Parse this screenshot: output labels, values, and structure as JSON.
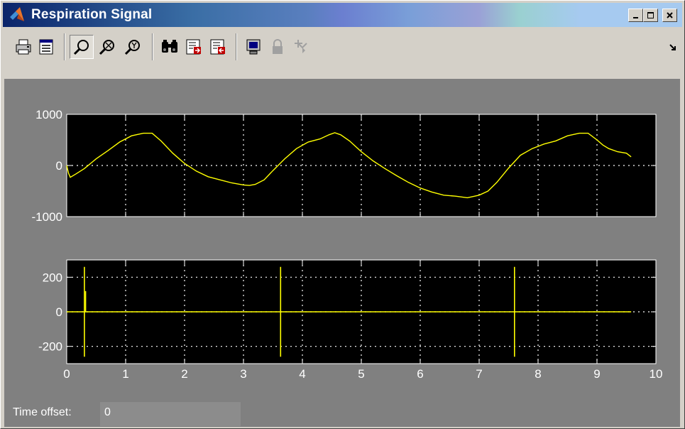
{
  "window": {
    "title": "Respiration Signal",
    "controls": [
      "minimize",
      "maximize",
      "close"
    ]
  },
  "toolbar": {
    "items": [
      {
        "name": "print-icon"
      },
      {
        "name": "parameters-icon"
      },
      {
        "name": "zoom-icon",
        "pressed": true
      },
      {
        "name": "zoom-x-icon"
      },
      {
        "name": "zoom-y-icon"
      },
      {
        "name": "autoscale-icon"
      },
      {
        "name": "save-axes-icon"
      },
      {
        "name": "restore-axes-icon"
      },
      {
        "name": "floating-scope-icon"
      },
      {
        "name": "lock-axes-icon"
      },
      {
        "name": "signal-selector-icon"
      }
    ]
  },
  "colors": {
    "scope_bg": "#808080",
    "axes_bg": "#000000",
    "signal": "#ffff00",
    "grid": "#ffffff"
  },
  "status": {
    "label": "Time offset:",
    "value": "0"
  },
  "chart_data": [
    {
      "type": "line",
      "xlim": [
        0,
        10
      ],
      "ylim": [
        -1000,
        1000
      ],
      "yticks": [
        "1000",
        "0",
        "-1000"
      ],
      "grid": true,
      "series": [
        {
          "x": [
            0,
            0.03,
            0.06,
            0.15,
            0.3,
            0.5,
            0.7,
            0.9,
            1.1,
            1.3,
            1.45,
            1.6,
            1.8,
            2.0,
            2.2,
            2.4,
            2.6,
            2.8,
            3.0,
            3.1,
            3.2,
            3.35,
            3.5,
            3.7,
            3.9,
            4.1,
            4.3,
            4.45,
            4.55,
            4.65,
            4.8,
            5.0,
            5.2,
            5.4,
            5.6,
            5.8,
            6.0,
            6.2,
            6.4,
            6.6,
            6.8,
            7.0,
            7.15,
            7.3,
            7.5,
            7.7,
            7.9,
            8.1,
            8.3,
            8.5,
            8.7,
            8.85,
            9.0,
            9.1,
            9.2,
            9.35,
            9.5,
            9.58
          ],
          "y": [
            0,
            -150,
            -230,
            -170,
            -60,
            130,
            290,
            460,
            580,
            630,
            630,
            480,
            240,
            40,
            -110,
            -220,
            -280,
            -340,
            -380,
            -390,
            -370,
            -280,
            -100,
            130,
            330,
            460,
            520,
            600,
            640,
            600,
            480,
            270,
            90,
            -60,
            -200,
            -330,
            -440,
            -520,
            -580,
            -600,
            -630,
            -580,
            -500,
            -330,
            -50,
            200,
            330,
            420,
            480,
            580,
            630,
            630,
            500,
            400,
            330,
            270,
            240,
            170
          ]
        }
      ]
    },
    {
      "type": "line",
      "xlim": [
        0,
        10
      ],
      "ylim": [
        -300,
        300
      ],
      "yticks": [
        "200",
        "0",
        "-200"
      ],
      "xticks": [
        "0",
        "1",
        "2",
        "3",
        "4",
        "5",
        "6",
        "7",
        "8",
        "9",
        "10"
      ],
      "grid": true,
      "series": [
        {
          "baseline": 0,
          "x_end": 9.58,
          "spikes": [
            {
              "x": 0.3,
              "max": 260,
              "min": -260
            },
            {
              "x": 0.32,
              "max": 120,
              "min": 0
            },
            {
              "x": 3.63,
              "max": 260,
              "min": -260
            },
            {
              "x": 7.6,
              "max": 260,
              "min": -260
            }
          ]
        }
      ]
    }
  ]
}
